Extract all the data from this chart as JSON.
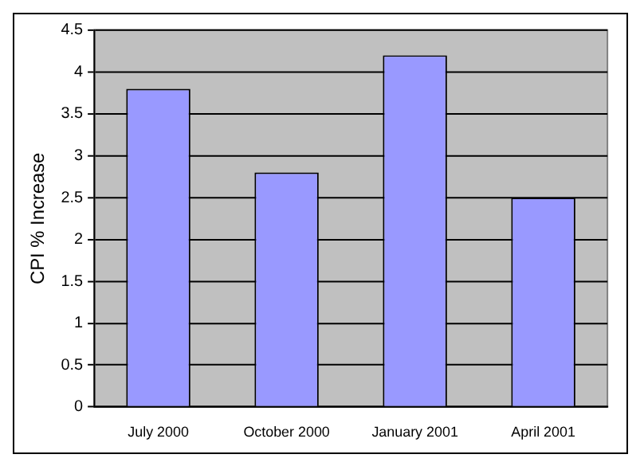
{
  "chart_data": {
    "type": "bar",
    "ylabel": "CPI % Increase",
    "categories": [
      "July 2000",
      "October 2000",
      "January 2001",
      "April 2001"
    ],
    "values": [
      3.8,
      2.8,
      4.2,
      2.5
    ],
    "color": "#9999ff",
    "ylim": [
      0,
      4.5
    ],
    "yticks": [
      0,
      0.5,
      1,
      1.5,
      2,
      2.5,
      3,
      3.5,
      4,
      4.5
    ],
    "grid": "y",
    "legend": false
  }
}
